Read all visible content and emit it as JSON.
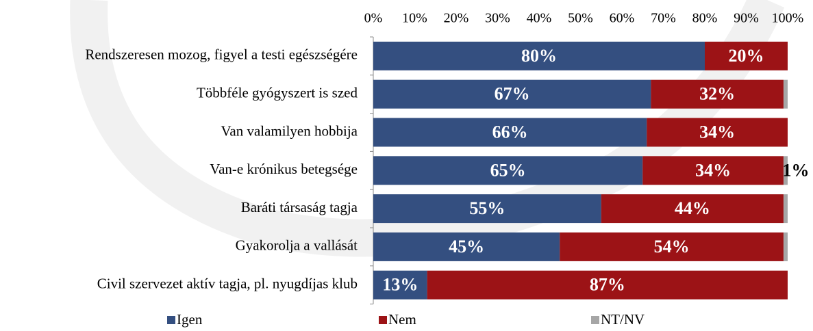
{
  "chart_data": {
    "type": "stacked-bar-horizontal",
    "categories": [
      "Rendszeresen mozog,  figyel a testi egészségére",
      "Többféle gyógyszert is szed",
      "Van valamilyen hobbija",
      "Van-e krónikus betegsége ",
      "Baráti társaság tagja",
      "Gyakorolja a vallását",
      "Civil szervezet aktív tagja, pl. nyugdíjas klub"
    ],
    "series": [
      {
        "name": "Igen",
        "color": "#344f80",
        "values": [
          80,
          67,
          66,
          65,
          55,
          45,
          13
        ],
        "value_labels": [
          "80%",
          "67%",
          "66%",
          "65%",
          "55%",
          "45%",
          "13%"
        ]
      },
      {
        "name": "Nem",
        "color": "#9c1316",
        "values": [
          20,
          32,
          34,
          34,
          44,
          54,
          87
        ],
        "value_labels": [
          "20%",
          "32%",
          "34%",
          "34%",
          "44%",
          "54%",
          "87%"
        ]
      },
      {
        "name": "NT/NV",
        "color": "#a6a6a6",
        "values": [
          0,
          1,
          0,
          1,
          1,
          1,
          0
        ],
        "value_labels": [
          null,
          null,
          null,
          "1%",
          null,
          null,
          null
        ]
      }
    ],
    "xlim": [
      0,
      100
    ],
    "xticks": [
      {
        "value": 0,
        "label": "0%"
      },
      {
        "value": 10,
        "label": "10%"
      },
      {
        "value": 20,
        "label": "20%"
      },
      {
        "value": 30,
        "label": "30%"
      },
      {
        "value": 40,
        "label": "40%"
      },
      {
        "value": 50,
        "label": "50%"
      },
      {
        "value": 60,
        "label": "60%"
      },
      {
        "value": 70,
        "label": "70%"
      },
      {
        "value": 80,
        "label": "80%"
      },
      {
        "value": 90,
        "label": "90%"
      },
      {
        "value": 100,
        "label": "100%"
      }
    ],
    "legend": "bottom"
  }
}
